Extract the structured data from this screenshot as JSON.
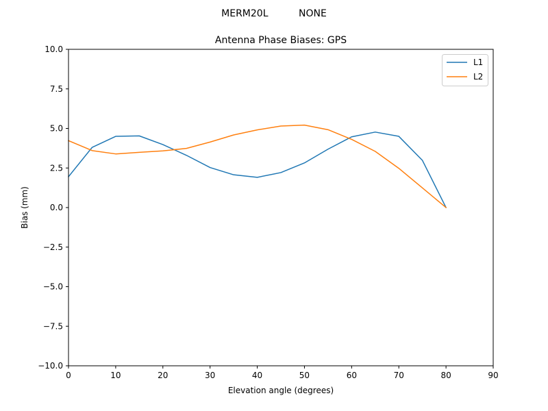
{
  "chart_data": {
    "type": "line",
    "suptitle": "MERM20L          NONE",
    "title": "Antenna Phase Biases: GPS",
    "xlabel": "Elevation angle (degrees)",
    "ylabel": "Bias (mm)",
    "xlim": [
      0,
      90
    ],
    "ylim": [
      -10,
      10
    ],
    "xticks": [
      0,
      10,
      20,
      30,
      40,
      50,
      60,
      70,
      80,
      90
    ],
    "yticks": [
      -10.0,
      -7.5,
      -5.0,
      -2.5,
      0.0,
      2.5,
      5.0,
      7.5,
      10.0
    ],
    "xtick_labels": [
      "0",
      "10",
      "20",
      "30",
      "40",
      "50",
      "60",
      "70",
      "80",
      "90"
    ],
    "ytick_labels": [
      "−10.0",
      "−7.5",
      "−5.0",
      "−2.5",
      "0.0",
      "2.5",
      "5.0",
      "7.5",
      "10.0"
    ],
    "grid": false,
    "legend": "top-right",
    "x": [
      0,
      5,
      10,
      15,
      20,
      25,
      30,
      35,
      40,
      45,
      50,
      55,
      60,
      65,
      70,
      75,
      80
    ],
    "series": [
      {
        "name": "L1",
        "color": "#1f77b4",
        "values": [
          1.95,
          3.8,
          4.5,
          4.53,
          3.98,
          3.3,
          2.53,
          2.07,
          1.91,
          2.21,
          2.82,
          3.69,
          4.47,
          4.77,
          4.5,
          2.98,
          0.0
        ]
      },
      {
        "name": "L2",
        "color": "#ff7f0e",
        "values": [
          4.23,
          3.6,
          3.39,
          3.49,
          3.58,
          3.74,
          4.14,
          4.59,
          4.91,
          5.15,
          5.21,
          4.92,
          4.31,
          3.55,
          2.48,
          1.24,
          0.0
        ]
      }
    ]
  }
}
